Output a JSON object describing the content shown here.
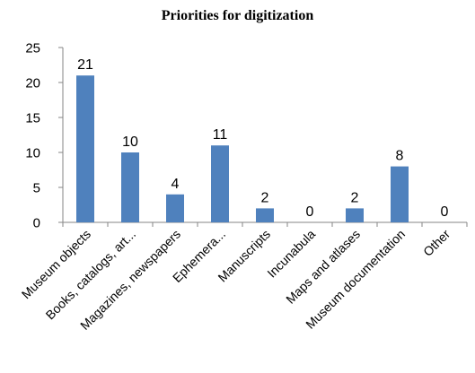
{
  "colors": {
    "bar": "#4F81BD",
    "axis": "#868686",
    "text": "#000000",
    "background": "#FFFFFF"
  },
  "chart_data": {
    "type": "bar",
    "title": "Priorities for digitization",
    "xlabel": "",
    "ylabel": "",
    "categories": [
      "Museum objects",
      "Books, catalogs, art...",
      "Magazines, newspapers",
      "Ephemera...",
      "Manuscripts",
      "Incunabula",
      "Maps and atlases",
      "Museum documentation",
      "Other"
    ],
    "values": [
      21,
      10,
      4,
      11,
      2,
      0,
      2,
      8,
      0
    ],
    "ylim": [
      0,
      25
    ],
    "yticks": [
      0,
      5,
      10,
      15,
      20,
      25
    ],
    "grid": false,
    "legend": "none",
    "data_labels": true
  }
}
